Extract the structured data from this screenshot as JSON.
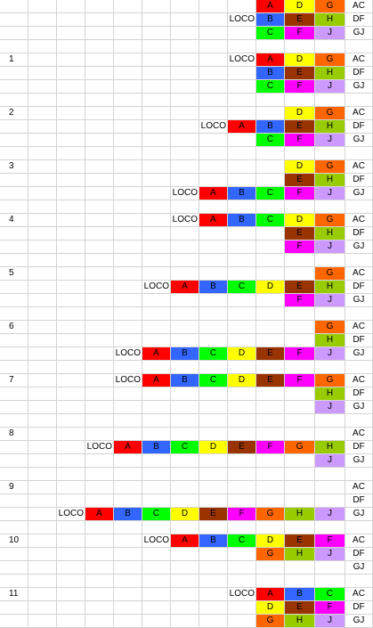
{
  "sheet": {
    "rows": [
      {
        "label": "",
        "loco": "",
        "cars": [
          [
            9,
            "A"
          ],
          [
            10,
            "D"
          ],
          [
            11,
            "G"
          ]
        ],
        "name": "AC"
      },
      {
        "label": "",
        "loco": "LOCO",
        "cars": [
          [
            9,
            "B"
          ],
          [
            10,
            "E"
          ],
          [
            11,
            "H"
          ]
        ],
        "name": "DF"
      },
      {
        "label": "",
        "loco": "",
        "cars": [
          [
            9,
            "C"
          ],
          [
            10,
            "F"
          ],
          [
            11,
            "J"
          ]
        ],
        "name": "GJ"
      },
      {
        "label": "",
        "loco": "",
        "cars": [],
        "name": ""
      },
      {
        "label": "1",
        "loco": "LOCO",
        "cars": [
          [
            9,
            "A"
          ],
          [
            10,
            "D"
          ],
          [
            11,
            "G"
          ]
        ],
        "name": "AC"
      },
      {
        "label": "",
        "loco": "",
        "cars": [
          [
            9,
            "B"
          ],
          [
            10,
            "E"
          ],
          [
            11,
            "H"
          ]
        ],
        "name": "DF"
      },
      {
        "label": "",
        "loco": "",
        "cars": [
          [
            9,
            "C"
          ],
          [
            10,
            "F"
          ],
          [
            11,
            "J"
          ]
        ],
        "name": "GJ"
      },
      {
        "label": "",
        "loco": "",
        "cars": [],
        "name": ""
      },
      {
        "label": "2",
        "loco": "",
        "cars": [
          [
            10,
            "D"
          ],
          [
            11,
            "G"
          ]
        ],
        "name": "AC"
      },
      {
        "label": "",
        "loco": "LOCO",
        "cars": [
          [
            8,
            "A"
          ],
          [
            9,
            "B"
          ],
          [
            10,
            "E"
          ],
          [
            11,
            "H"
          ]
        ],
        "name": "DF"
      },
      {
        "label": "",
        "loco": "",
        "cars": [
          [
            9,
            "C"
          ],
          [
            10,
            "F"
          ],
          [
            11,
            "J"
          ]
        ],
        "name": "GJ"
      },
      {
        "label": "",
        "loco": "",
        "cars": [],
        "name": ""
      },
      {
        "label": "3",
        "loco": "",
        "cars": [
          [
            10,
            "D"
          ],
          [
            11,
            "G"
          ]
        ],
        "name": "AC"
      },
      {
        "label": "",
        "loco": "",
        "cars": [
          [
            10,
            "E"
          ],
          [
            11,
            "H"
          ]
        ],
        "name": "DF"
      },
      {
        "label": "",
        "loco": "LOCO",
        "cars": [
          [
            7,
            "A"
          ],
          [
            8,
            "B"
          ],
          [
            9,
            "C"
          ],
          [
            10,
            "F"
          ],
          [
            11,
            "J"
          ]
        ],
        "name": "GJ"
      },
      {
        "label": "",
        "loco": "",
        "cars": [],
        "name": ""
      },
      {
        "label": "4",
        "loco": "LOCO",
        "cars": [
          [
            7,
            "A"
          ],
          [
            8,
            "B"
          ],
          [
            9,
            "C"
          ],
          [
            10,
            "D"
          ],
          [
            11,
            "G"
          ]
        ],
        "name": "AC"
      },
      {
        "label": "",
        "loco": "",
        "cars": [
          [
            10,
            "E"
          ],
          [
            11,
            "H"
          ]
        ],
        "name": "DF"
      },
      {
        "label": "",
        "loco": "",
        "cars": [
          [
            10,
            "F"
          ],
          [
            11,
            "J"
          ]
        ],
        "name": "GJ"
      },
      {
        "label": "",
        "loco": "",
        "cars": [],
        "name": ""
      },
      {
        "label": "5",
        "loco": "",
        "cars": [
          [
            11,
            "G"
          ]
        ],
        "name": "AC"
      },
      {
        "label": "",
        "loco": "LOCO",
        "cars": [
          [
            6,
            "A"
          ],
          [
            7,
            "B"
          ],
          [
            8,
            "C"
          ],
          [
            9,
            "D"
          ],
          [
            10,
            "E"
          ],
          [
            11,
            "H"
          ]
        ],
        "name": "DF"
      },
      {
        "label": "",
        "loco": "",
        "cars": [
          [
            10,
            "F"
          ],
          [
            11,
            "J"
          ]
        ],
        "name": "GJ"
      },
      {
        "label": "",
        "loco": "",
        "cars": [],
        "name": ""
      },
      {
        "label": "6",
        "loco": "",
        "cars": [
          [
            11,
            "G"
          ]
        ],
        "name": "AC"
      },
      {
        "label": "",
        "loco": "",
        "cars": [
          [
            11,
            "H"
          ]
        ],
        "name": "DF"
      },
      {
        "label": "",
        "loco": "LOCO",
        "cars": [
          [
            5,
            "A"
          ],
          [
            6,
            "B"
          ],
          [
            7,
            "C"
          ],
          [
            8,
            "D"
          ],
          [
            9,
            "E"
          ],
          [
            10,
            "F"
          ],
          [
            11,
            "J"
          ]
        ],
        "name": "GJ"
      },
      {
        "label": "",
        "loco": "",
        "cars": [],
        "name": ""
      },
      {
        "label": "7",
        "loco": "LOCO",
        "cars": [
          [
            5,
            "A"
          ],
          [
            6,
            "B"
          ],
          [
            7,
            "C"
          ],
          [
            8,
            "D"
          ],
          [
            9,
            "E"
          ],
          [
            10,
            "F"
          ],
          [
            11,
            "G"
          ]
        ],
        "name": "AC"
      },
      {
        "label": "",
        "loco": "",
        "cars": [
          [
            11,
            "H"
          ]
        ],
        "name": "DF"
      },
      {
        "label": "",
        "loco": "",
        "cars": [
          [
            11,
            "J"
          ]
        ],
        "name": "GJ"
      },
      {
        "label": "",
        "loco": "",
        "cars": [],
        "name": ""
      },
      {
        "label": "8",
        "loco": "",
        "cars": [],
        "name": "AC"
      },
      {
        "label": "",
        "loco": "LOCO",
        "cars": [
          [
            4,
            "A"
          ],
          [
            5,
            "B"
          ],
          [
            6,
            "C"
          ],
          [
            7,
            "D"
          ],
          [
            8,
            "E"
          ],
          [
            9,
            "F"
          ],
          [
            10,
            "G"
          ],
          [
            11,
            "H"
          ]
        ],
        "name": "DF"
      },
      {
        "label": "",
        "loco": "",
        "cars": [
          [
            11,
            "J"
          ]
        ],
        "name": "GJ"
      },
      {
        "label": "",
        "loco": "",
        "cars": [],
        "name": ""
      },
      {
        "label": "9",
        "loco": "",
        "cars": [],
        "name": "AC"
      },
      {
        "label": "",
        "loco": "",
        "cars": [],
        "name": "DF"
      },
      {
        "label": "",
        "loco": "LOCO",
        "cars": [
          [
            3,
            "A"
          ],
          [
            4,
            "B"
          ],
          [
            5,
            "C"
          ],
          [
            6,
            "D"
          ],
          [
            7,
            "E"
          ],
          [
            8,
            "F"
          ],
          [
            9,
            "G"
          ],
          [
            10,
            "H"
          ],
          [
            11,
            "J"
          ]
        ],
        "name": "GJ"
      },
      {
        "label": "",
        "loco": "",
        "cars": [],
        "name": ""
      },
      {
        "label": "10",
        "loco": "LOCO",
        "cars": [
          [
            6,
            "A"
          ],
          [
            7,
            "B"
          ],
          [
            8,
            "C"
          ],
          [
            9,
            "D"
          ],
          [
            10,
            "E"
          ],
          [
            11,
            "F"
          ]
        ],
        "name": "AC"
      },
      {
        "label": "",
        "loco": "",
        "cars": [
          [
            9,
            "G"
          ],
          [
            10,
            "H"
          ],
          [
            11,
            "J"
          ]
        ],
        "name": "DF"
      },
      {
        "label": "",
        "loco": "",
        "cars": [],
        "name": "GJ"
      },
      {
        "label": "",
        "loco": "",
        "cars": [],
        "name": ""
      },
      {
        "label": "11",
        "loco": "LOCO",
        "cars": [
          [
            9,
            "A"
          ],
          [
            10,
            "B"
          ],
          [
            11,
            "C"
          ]
        ],
        "name": "AC"
      },
      {
        "label": "",
        "loco": "",
        "cars": [
          [
            9,
            "D"
          ],
          [
            10,
            "E"
          ],
          [
            11,
            "F"
          ]
        ],
        "name": "DF"
      },
      {
        "label": "",
        "loco": "",
        "cars": [
          [
            9,
            "G"
          ],
          [
            10,
            "H"
          ],
          [
            11,
            "J"
          ]
        ],
        "name": "GJ"
      }
    ]
  },
  "colors": {
    "A": "#ff0000",
    "B": "#3366ff",
    "C": "#00ff00",
    "D": "#ffff00",
    "E": "#993300",
    "F": "#ff00ff",
    "G": "#ff6600",
    "H": "#99cc00",
    "J": "#cc99ff",
    "gridline": "#d4d4d4"
  }
}
